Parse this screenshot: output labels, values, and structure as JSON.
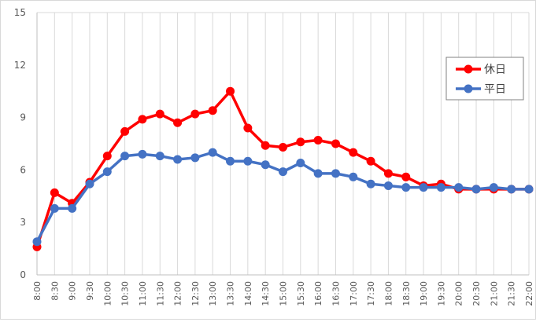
{
  "chart_data": {
    "type": "line",
    "title": "",
    "xlabel": "",
    "ylabel": "",
    "ylim": [
      0,
      15
    ],
    "yticks": [
      0,
      3,
      6,
      9,
      12,
      15
    ],
    "grid": {
      "horizontal": false,
      "vertical": true
    },
    "legend_position": "right",
    "categories": [
      "8:00",
      "8:30",
      "9:00",
      "9:30",
      "10:00",
      "10:30",
      "11:00",
      "11:30",
      "12:00",
      "12:30",
      "13:00",
      "13:30",
      "14:00",
      "14:30",
      "15:00",
      "15:30",
      "16:00",
      "16:30",
      "17:00",
      "17:30",
      "18:00",
      "18:30",
      "19:00",
      "19:30",
      "20:00",
      "20:30",
      "21:00",
      "21:30",
      "22:00"
    ],
    "series": [
      {
        "name": "休日",
        "color": "#ff0000",
        "values": [
          1.6,
          4.7,
          4.1,
          5.3,
          6.8,
          8.2,
          8.9,
          9.2,
          8.7,
          9.2,
          9.4,
          10.5,
          8.4,
          7.4,
          7.3,
          7.6,
          7.7,
          7.5,
          7.0,
          6.5,
          5.8,
          5.6,
          5.1,
          5.2,
          4.9,
          4.9,
          4.9,
          4.9,
          4.9
        ]
      },
      {
        "name": "平日",
        "color": "#4472c4",
        "values": [
          1.9,
          3.8,
          3.8,
          5.2,
          5.9,
          6.8,
          6.9,
          6.8,
          6.6,
          6.7,
          7.0,
          6.5,
          6.5,
          6.3,
          5.9,
          6.4,
          5.8,
          5.8,
          5.6,
          5.2,
          5.1,
          5.0,
          5.0,
          5.0,
          5.0,
          4.9,
          5.0,
          4.9,
          4.9
        ]
      }
    ]
  }
}
